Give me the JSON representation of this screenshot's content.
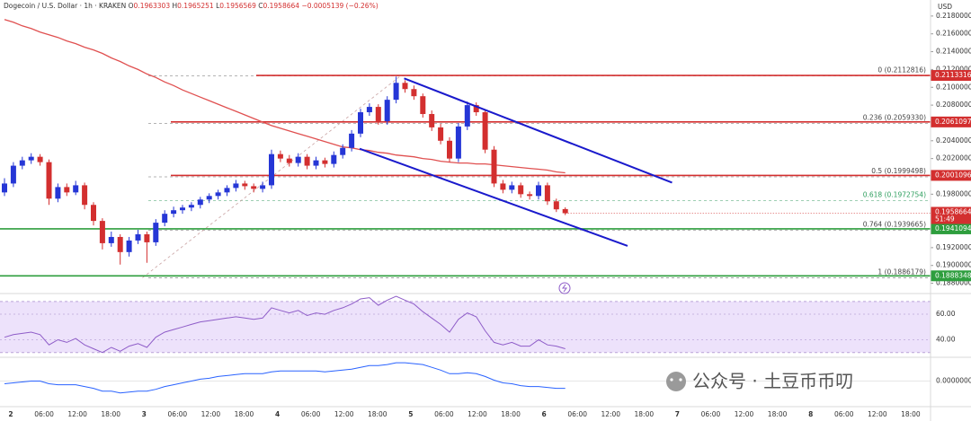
{
  "chart_data": {
    "type": "candlestick",
    "symbol": "Dogecoin / U.S. Dollar · 1h · KRAKEN",
    "ohlc_labels": [
      "O",
      "H",
      "L",
      "C"
    ],
    "change": "−0.0005139 (−0.26%)",
    "currency": "USD",
    "up_color": "#2536d6",
    "down_color": "#d32f2f",
    "candles": {
      "open": [
        0.1982,
        0.1992,
        0.2012,
        0.2018,
        0.2022,
        0.2016,
        0.1975,
        0.1988,
        0.1982,
        0.199,
        0.1968,
        0.195,
        0.1925,
        0.1932,
        0.1915,
        0.1928,
        0.1935,
        0.1926,
        0.1948,
        0.1958,
        0.1962,
        0.1965,
        0.1968,
        0.1974,
        0.1978,
        0.1982,
        0.1987,
        0.1992,
        0.1989,
        0.1986,
        0.199,
        0.2025,
        0.202,
        0.2015,
        0.2022,
        0.2012,
        0.2018,
        0.2014,
        0.2024,
        0.2032,
        0.2048,
        0.2072,
        0.2078,
        0.2062,
        0.2086,
        0.2105,
        0.2098,
        0.209,
        0.207,
        0.2055,
        0.204,
        0.202,
        0.2056,
        0.208,
        0.2072,
        0.203,
        0.1992,
        0.1985,
        0.199,
        0.198,
        0.1978,
        0.199,
        0.1972,
        0.1963303
      ],
      "high": [
        0.1998,
        0.2016,
        0.2022,
        0.2026,
        0.2025,
        0.2019,
        0.1992,
        0.1992,
        0.1995,
        0.1993,
        0.1971,
        0.1953,
        0.1938,
        0.1935,
        0.1932,
        0.194,
        0.1938,
        0.1952,
        0.1962,
        0.1966,
        0.1968,
        0.1971,
        0.1977,
        0.1981,
        0.1985,
        0.199,
        0.1996,
        0.1995,
        0.1992,
        0.1994,
        0.203,
        0.2029,
        0.2024,
        0.2026,
        0.2025,
        0.2022,
        0.2021,
        0.2028,
        0.2036,
        0.2052,
        0.2076,
        0.2082,
        0.2081,
        0.209,
        0.2112,
        0.2108,
        0.2102,
        0.2093,
        0.2074,
        0.2059,
        0.2044,
        0.206,
        0.2084,
        0.2083,
        0.2075,
        0.2034,
        0.1996,
        0.1994,
        0.1993,
        0.1983,
        0.1994,
        0.1993,
        0.1975,
        0.1965251
      ],
      "low": [
        0.1978,
        0.1988,
        0.2008,
        0.2014,
        0.2012,
        0.1968,
        0.1971,
        0.1978,
        0.1979,
        0.1963,
        0.1945,
        0.1918,
        0.1921,
        0.1901,
        0.191,
        0.1924,
        0.1903,
        0.1922,
        0.1944,
        0.1954,
        0.1958,
        0.1961,
        0.1964,
        0.197,
        0.1974,
        0.1978,
        0.1983,
        0.1985,
        0.1982,
        0.1982,
        0.1986,
        0.2016,
        0.2011,
        0.2011,
        0.2008,
        0.2008,
        0.201,
        0.201,
        0.202,
        0.2028,
        0.2044,
        0.2068,
        0.2058,
        0.2058,
        0.2082,
        0.2094,
        0.2086,
        0.2066,
        0.2051,
        0.2036,
        0.2016,
        0.2016,
        0.2052,
        0.2068,
        0.2026,
        0.1988,
        0.1981,
        0.1981,
        0.1976,
        0.1974,
        0.1974,
        0.1968,
        0.196,
        0.1956569
      ],
      "close": [
        0.1992,
        0.2012,
        0.2018,
        0.2022,
        0.2016,
        0.1975,
        0.1988,
        0.1982,
        0.199,
        0.1968,
        0.195,
        0.1925,
        0.1932,
        0.1915,
        0.1928,
        0.1935,
        0.1926,
        0.1948,
        0.1958,
        0.1962,
        0.1965,
        0.1968,
        0.1974,
        0.1978,
        0.1982,
        0.1987,
        0.1992,
        0.1989,
        0.1986,
        0.199,
        0.2025,
        0.202,
        0.2015,
        0.2022,
        0.2012,
        0.2018,
        0.2014,
        0.2024,
        0.2032,
        0.2048,
        0.2072,
        0.2078,
        0.2062,
        0.2086,
        0.2105,
        0.2098,
        0.209,
        0.207,
        0.2055,
        0.204,
        0.202,
        0.2056,
        0.208,
        0.2072,
        0.203,
        0.1992,
        0.1985,
        0.199,
        0.198,
        0.1978,
        0.199,
        0.1972,
        0.1963,
        0.1958664
      ]
    },
    "ma": {
      "color": "#e05050",
      "values": [
        0.2176,
        0.2173,
        0.2169,
        0.2166,
        0.2162,
        0.2159,
        0.2156,
        0.2152,
        0.2149,
        0.2145,
        0.2142,
        0.2138,
        0.2133,
        0.2129,
        0.2124,
        0.212,
        0.2115,
        0.2111,
        0.2106,
        0.2102,
        0.2097,
        0.2093,
        0.2089,
        0.2085,
        0.2081,
        0.2077,
        0.2073,
        0.2069,
        0.2065,
        0.2061,
        0.2057,
        0.2054,
        0.2051,
        0.2048,
        0.2045,
        0.2042,
        0.2039,
        0.2036,
        0.2033,
        0.2032,
        0.203,
        0.2029,
        0.2027,
        0.2026,
        0.2024,
        0.2023,
        0.2022,
        0.202,
        0.2019,
        0.2017,
        0.2016,
        0.2015,
        0.2015,
        0.2014,
        0.2014,
        0.2013,
        0.2012,
        0.2011,
        0.201,
        0.2009,
        0.2008,
        0.2007,
        0.2005,
        0.2004
      ]
    },
    "ylim": [
      0.18705,
      0.2198
    ],
    "yticks": [
      {
        "value": 0.218,
        "label": "0.2180000"
      },
      {
        "value": 0.216,
        "label": "0.2160000"
      },
      {
        "value": 0.214,
        "label": "0.2140000"
      },
      {
        "value": 0.212,
        "label": "0.2120000"
      },
      {
        "value": 0.21,
        "label": "0.2100000"
      },
      {
        "value": 0.208,
        "label": "0.2080000"
      },
      {
        "value": 0.204,
        "label": "0.2040000"
      },
      {
        "value": 0.202,
        "label": "0.2020000"
      },
      {
        "value": 0.198,
        "label": "0.1980000"
      },
      {
        "value": 0.192,
        "label": "0.1920000"
      },
      {
        "value": 0.19,
        "label": "0.1900000"
      },
      {
        "value": 0.188,
        "label": "0.1880000"
      }
    ],
    "levels": [
      {
        "value": 0.2113316,
        "color": "#d32f2f"
      },
      {
        "value": 0.2061097,
        "color": "#d32f2f"
      },
      {
        "value": 0.2001096,
        "color": "#d32f2f"
      },
      {
        "value": 0.1941094,
        "color": "#2e9e3e"
      },
      {
        "value": 0.1888348,
        "color": "#2e9e3e"
      }
    ],
    "fib_levels": [
      {
        "value": 0.2112816,
        "label": "0 (0.2112816)"
      },
      {
        "value": 0.205933,
        "label": "0.236 (0.2059330)"
      },
      {
        "value": 0.1999498,
        "label": "0.5 (0.1999498)"
      },
      {
        "value": 0.1972754,
        "label": "0.618 (0.1972754)"
      },
      {
        "value": 0.1939665,
        "label": "0.764 (0.1939665)"
      },
      {
        "value": 0.1886179,
        "label": "1 (0.1886179)"
      }
    ],
    "countdown": "51:49",
    "trendlines": [
      {
        "color": "#1a1acc",
        "x": [
          44.9,
          75
        ],
        "values": [
          0.211,
          0.1993
        ]
      },
      {
        "color": "#1a1acc",
        "x": [
          39.9,
          70
        ],
        "values": [
          0.2031,
          0.1922
        ]
      }
    ],
    "time_labels": [
      "2",
      "06:00",
      "12:00",
      "18:00",
      "3",
      "06:00",
      "12:00",
      "18:00",
      "4",
      "06:00",
      "12:00",
      "18:00",
      "5",
      "06:00",
      "12:00",
      "18:00",
      "6",
      "06:00",
      "12:00",
      "18:00",
      "7",
      "06:00",
      "12:00",
      "18:00",
      "8",
      "06:00",
      "12:00",
      "18:00"
    ],
    "rsi": {
      "color": "#8e5cc8",
      "ylim": [
        27,
        75.5
      ],
      "band": [
        30,
        70
      ],
      "yticks": [
        {
          "value": 60,
          "label": "60.00"
        },
        {
          "value": 40,
          "label": "40.00"
        }
      ],
      "values": [
        42,
        44,
        45,
        46,
        44,
        36,
        40,
        38,
        41,
        36,
        33,
        30,
        34,
        31,
        35,
        37,
        34,
        42,
        46,
        48,
        50,
        52,
        54,
        55,
        56,
        57,
        58,
        57,
        56,
        57,
        65,
        63,
        61,
        63,
        59,
        61,
        60,
        63,
        65,
        68,
        72,
        73,
        67,
        71,
        74,
        71,
        68,
        62,
        57,
        52,
        46,
        56,
        61,
        58,
        47,
        38,
        36,
        38,
        35,
        35,
        40,
        36,
        35,
        33
      ]
    },
    "macd": {
      "color": "#2962ff",
      "ylim": [
        -0.0027,
        0.0025
      ],
      "yticks": [
        {
          "value": 0,
          "label": "0.0000000"
        }
      ],
      "values": [
        -0.0003,
        -0.0002,
        -0.0001,
        0,
        0,
        -0.0003,
        -0.0004,
        -0.0004,
        -0.0004,
        -0.0006,
        -0.0008,
        -0.0011,
        -0.0011,
        -0.0013,
        -0.0012,
        -0.0011,
        -0.0011,
        -0.0009,
        -0.0006,
        -0.0004,
        -0.0002,
        0,
        0.0002,
        0.0003,
        0.0005,
        0.0006,
        0.0007,
        0.0008,
        0.0008,
        0.0008,
        0.001,
        0.0011,
        0.0011,
        0.0011,
        0.0011,
        0.0011,
        0.001,
        0.0011,
        0.0012,
        0.0013,
        0.0015,
        0.0017,
        0.0017,
        0.0018,
        0.002,
        0.002,
        0.0019,
        0.0018,
        0.0015,
        0.0012,
        0.0008,
        0.0008,
        0.0009,
        0.0008,
        0.0005,
        0.0001,
        -0.0002,
        -0.0003,
        -0.0005,
        -0.0006,
        -0.0006,
        -0.0007,
        -0.0008,
        -0.0008
      ]
    },
    "watermark": "公众号 · 土豆币币叨"
  }
}
